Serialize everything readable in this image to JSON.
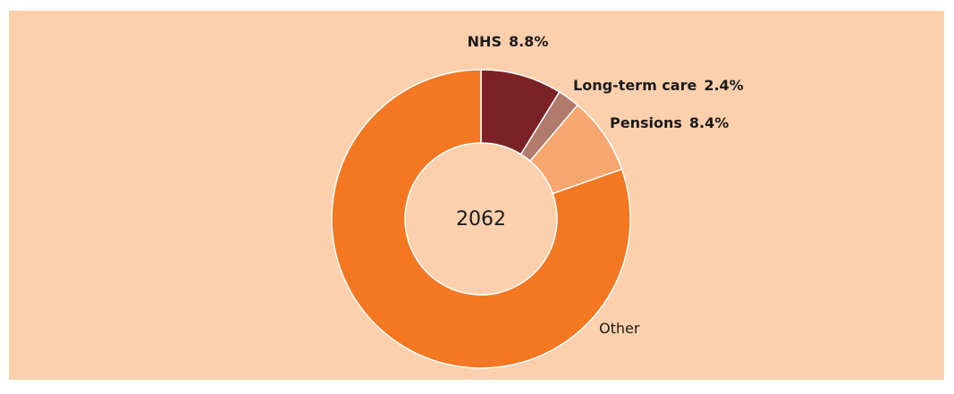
{
  "chart_data": {
    "type": "donut",
    "center_label": "2062",
    "categories": [
      "NHS",
      "Long-term care",
      "Pensions",
      "Other"
    ],
    "values": [
      8.8,
      2.4,
      8.4,
      80.4
    ],
    "value_labels": [
      "8.8%",
      "2.4%",
      "8.4%",
      null
    ],
    "colors": [
      "#7b2226",
      "#b07a6d",
      "#f7a66e",
      "#f47721"
    ]
  }
}
